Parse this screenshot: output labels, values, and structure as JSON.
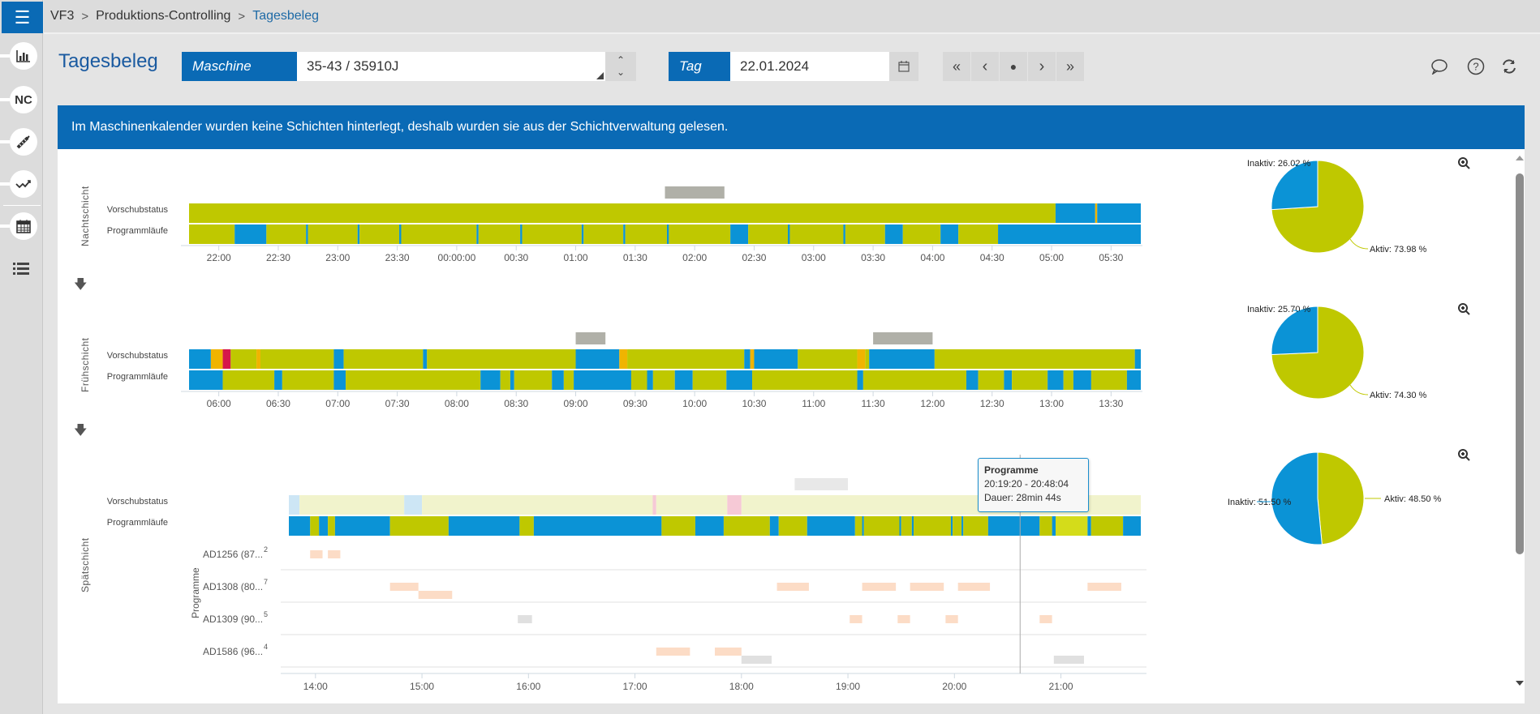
{
  "app": {
    "menu_icon": "hamburger-icon"
  },
  "breadcrumb": [
    {
      "label": "VF3"
    },
    {
      "label": "Produktions-Controlling"
    },
    {
      "label": "Tagesbeleg"
    }
  ],
  "sidebar": {
    "items": [
      {
        "name": "bar-chart-icon",
        "label": ""
      },
      {
        "name": "nc-icon",
        "label": "NC"
      },
      {
        "name": "tool-icon",
        "label": ""
      },
      {
        "name": "trend-icon",
        "label": ""
      },
      {
        "name": "calendar-icon",
        "label": ""
      },
      {
        "name": "list-icon",
        "label": ""
      }
    ]
  },
  "page": {
    "title": "Tagesbeleg"
  },
  "filters": {
    "machine_label": "Maschine",
    "machine_value": "35-43 / 35910J",
    "day_label": "Tag",
    "day_value": "22.01.2024"
  },
  "nav": {
    "first": "«",
    "prev": "‹",
    "today": "●",
    "next": "›",
    "last": "»"
  },
  "banner": {
    "text": "Im Maschinenkalender wurden keine Schichten hinterlegt, deshalb wurden sie aus der Schichtverwaltung gelesen."
  },
  "row_labels": {
    "feed": "Vorschubstatus",
    "runs": "Programmläufe",
    "programs_axis": "Programme"
  },
  "colors": {
    "active": "#bfc800",
    "inactive": "#0b93d6",
    "warning": "#f0b400",
    "error": "#d6174b",
    "idle_bar": "#b0b0a8",
    "primary": "#0a6ab5"
  },
  "tooltip": {
    "title": "Programme",
    "range": "20:19:20 - 20:48:04",
    "duration": "Dauer: 28min 44s"
  },
  "chart_data": [
    {
      "type": "gantt",
      "title": "Nachtschicht",
      "x_start": "21:45",
      "x_end": "05:45",
      "ticks": [
        "22:00",
        "22:30",
        "23:00",
        "23:30",
        "00:00:00",
        "00:30",
        "01:00",
        "01:30",
        "02:00",
        "02:30",
        "03:00",
        "03:30",
        "04:00",
        "04:30",
        "05:00",
        "05:30"
      ],
      "idle_markers": [
        [
          "01:45",
          "02:15"
        ]
      ],
      "feed": [
        [
          "21:45",
          "05:02",
          "active"
        ],
        [
          "05:02",
          "05:22",
          "inactive"
        ],
        [
          "05:22",
          "05:23",
          "warning"
        ],
        [
          "05:23",
          "05:45",
          "inactive"
        ]
      ],
      "runs": [
        [
          "21:45",
          "22:08",
          "active"
        ],
        [
          "22:08",
          "22:24",
          "inactive"
        ],
        [
          "22:24",
          "22:44",
          "active"
        ],
        [
          "22:44",
          "22:45",
          "inactive"
        ],
        [
          "22:45",
          "23:10",
          "active"
        ],
        [
          "23:10",
          "23:11",
          "inactive"
        ],
        [
          "23:11",
          "23:31",
          "active"
        ],
        [
          "23:31",
          "23:32",
          "inactive"
        ],
        [
          "23:32",
          "00:10",
          "active"
        ],
        [
          "00:10",
          "00:11",
          "inactive"
        ],
        [
          "00:11",
          "00:32",
          "active"
        ],
        [
          "00:32",
          "00:33",
          "inactive"
        ],
        [
          "00:33",
          "01:03",
          "active"
        ],
        [
          "01:03",
          "01:04",
          "inactive"
        ],
        [
          "01:04",
          "01:24",
          "active"
        ],
        [
          "01:24",
          "01:25",
          "inactive"
        ],
        [
          "01:25",
          "01:46",
          "active"
        ],
        [
          "01:46",
          "01:47",
          "inactive"
        ],
        [
          "01:47",
          "02:18",
          "active"
        ],
        [
          "02:18",
          "02:27",
          "inactive"
        ],
        [
          "02:27",
          "02:47",
          "active"
        ],
        [
          "02:47",
          "02:48",
          "inactive"
        ],
        [
          "02:48",
          "03:15",
          "active"
        ],
        [
          "03:15",
          "03:16",
          "inactive"
        ],
        [
          "03:16",
          "03:36",
          "active"
        ],
        [
          "03:36",
          "03:45",
          "inactive"
        ],
        [
          "03:45",
          "04:04",
          "active"
        ],
        [
          "04:04",
          "04:13",
          "inactive"
        ],
        [
          "04:13",
          "04:33",
          "active"
        ],
        [
          "04:33",
          "05:45",
          "inactive"
        ]
      ],
      "pie": {
        "Aktiv": 73.98,
        "Inaktiv": 26.02
      }
    },
    {
      "type": "gantt",
      "title": "Frühschicht",
      "x_start": "05:45",
      "x_end": "13:45",
      "ticks": [
        "06:00",
        "06:30",
        "07:00",
        "07:30",
        "08:00",
        "08:30",
        "09:00",
        "09:30",
        "10:00",
        "10:30",
        "11:00",
        "11:30",
        "12:00",
        "12:30",
        "13:00",
        "13:30"
      ],
      "idle_markers": [
        [
          "09:00",
          "09:15"
        ],
        [
          "11:30",
          "12:00"
        ]
      ],
      "feed": [
        [
          "05:45",
          "05:56",
          "inactive"
        ],
        [
          "05:56",
          "06:02",
          "warning"
        ],
        [
          "06:02",
          "06:06",
          "error"
        ],
        [
          "06:06",
          "06:19",
          "active"
        ],
        [
          "06:19",
          "06:21",
          "warning"
        ],
        [
          "06:21",
          "06:58",
          "active"
        ],
        [
          "06:58",
          "07:03",
          "inactive"
        ],
        [
          "07:03",
          "07:43",
          "active"
        ],
        [
          "07:43",
          "07:45",
          "inactive"
        ],
        [
          "07:45",
          "09:00",
          "active"
        ],
        [
          "09:00",
          "09:22",
          "inactive"
        ],
        [
          "09:22",
          "09:26",
          "warning"
        ],
        [
          "09:26",
          "10:25",
          "active"
        ],
        [
          "10:25",
          "10:28",
          "inactive"
        ],
        [
          "10:28",
          "10:30",
          "warning"
        ],
        [
          "10:30",
          "10:52",
          "inactive"
        ],
        [
          "10:52",
          "11:22",
          "active"
        ],
        [
          "11:22",
          "11:26",
          "warning"
        ],
        [
          "11:26",
          "11:28",
          "active"
        ],
        [
          "11:28",
          "12:01",
          "inactive"
        ],
        [
          "12:01",
          "13:42",
          "active"
        ],
        [
          "13:42",
          "13:45",
          "inactive"
        ]
      ],
      "runs": [
        [
          "05:45",
          "06:02",
          "inactive"
        ],
        [
          "06:02",
          "06:28",
          "active"
        ],
        [
          "06:28",
          "06:32",
          "inactive"
        ],
        [
          "06:32",
          "06:58",
          "active"
        ],
        [
          "06:58",
          "07:04",
          "inactive"
        ],
        [
          "07:04",
          "08:12",
          "active"
        ],
        [
          "08:12",
          "08:22",
          "inactive"
        ],
        [
          "08:22",
          "08:27",
          "active"
        ],
        [
          "08:27",
          "08:29",
          "inactive"
        ],
        [
          "08:29",
          "08:48",
          "active"
        ],
        [
          "08:48",
          "08:54",
          "inactive"
        ],
        [
          "08:54",
          "08:59",
          "active"
        ],
        [
          "08:59",
          "09:28",
          "inactive"
        ],
        [
          "09:28",
          "09:36",
          "active"
        ],
        [
          "09:36",
          "09:39",
          "inactive"
        ],
        [
          "09:39",
          "09:50",
          "active"
        ],
        [
          "09:50",
          "09:59",
          "inactive"
        ],
        [
          "09:59",
          "10:16",
          "active"
        ],
        [
          "10:16",
          "10:29",
          "inactive"
        ],
        [
          "10:29",
          "11:22",
          "active"
        ],
        [
          "11:22",
          "11:25",
          "inactive"
        ],
        [
          "11:25",
          "12:17",
          "active"
        ],
        [
          "12:17",
          "12:23",
          "inactive"
        ],
        [
          "12:23",
          "12:36",
          "active"
        ],
        [
          "12:36",
          "12:40",
          "inactive"
        ],
        [
          "12:40",
          "12:58",
          "active"
        ],
        [
          "12:58",
          "13:06",
          "inactive"
        ],
        [
          "13:06",
          "13:11",
          "active"
        ],
        [
          "13:11",
          "13:20",
          "inactive"
        ],
        [
          "13:20",
          "13:38",
          "active"
        ],
        [
          "13:38",
          "13:45",
          "inactive"
        ]
      ],
      "pie": {
        "Aktiv": 74.3,
        "Inaktiv": 25.7
      }
    },
    {
      "type": "gantt",
      "title": "Spätschicht",
      "x_start": "13:45",
      "x_end": "21:45",
      "ticks": [
        "14:00",
        "15:00",
        "16:00",
        "17:00",
        "18:00",
        "19:00",
        "20:00",
        "21:00"
      ],
      "idle_markers": [
        [
          "18:30",
          "19:00"
        ]
      ],
      "feed_faded": true,
      "feed": [
        [
          "13:45",
          "13:51",
          "inactive"
        ],
        [
          "13:51",
          "14:50",
          "active"
        ],
        [
          "14:50",
          "15:00",
          "inactive"
        ],
        [
          "15:00",
          "17:10",
          "active"
        ],
        [
          "17:10",
          "17:12",
          "error"
        ],
        [
          "17:12",
          "17:52",
          "active"
        ],
        [
          "17:52",
          "18:00",
          "error"
        ],
        [
          "18:00",
          "21:45",
          "active"
        ]
      ],
      "runs": [
        [
          "13:45",
          "13:57",
          "inactive"
        ],
        [
          "13:57",
          "14:02",
          "active"
        ],
        [
          "14:02",
          "14:07",
          "inactive"
        ],
        [
          "14:07",
          "14:11",
          "active"
        ],
        [
          "14:11",
          "14:42",
          "inactive"
        ],
        [
          "14:42",
          "15:15",
          "active"
        ],
        [
          "15:15",
          "15:55",
          "inactive"
        ],
        [
          "15:55",
          "16:03",
          "active"
        ],
        [
          "16:03",
          "17:15",
          "inactive"
        ],
        [
          "17:15",
          "17:34",
          "active"
        ],
        [
          "17:34",
          "17:50",
          "inactive"
        ],
        [
          "17:50",
          "18:16",
          "active"
        ],
        [
          "18:16",
          "18:21",
          "inactive"
        ],
        [
          "18:21",
          "18:37",
          "active"
        ],
        [
          "18:37",
          "19:04",
          "inactive"
        ],
        [
          "19:04",
          "19:08",
          "active"
        ],
        [
          "19:08",
          "19:09",
          "inactive"
        ],
        [
          "19:09",
          "19:29",
          "active"
        ],
        [
          "19:29",
          "19:30",
          "inactive"
        ],
        [
          "19:30",
          "19:36",
          "active"
        ],
        [
          "19:36",
          "19:37",
          "inactive"
        ],
        [
          "19:37",
          "19:58",
          "active"
        ],
        [
          "19:58",
          "19:59",
          "inactive"
        ],
        [
          "19:59",
          "20:04",
          "active"
        ],
        [
          "20:04",
          "20:05",
          "inactive"
        ],
        [
          "20:05",
          "20:19",
          "active"
        ],
        [
          "20:19",
          "20:48",
          "inactive"
        ],
        [
          "20:48",
          "20:55",
          "active"
        ],
        [
          "20:55",
          "20:57",
          "inactive"
        ],
        [
          "20:57",
          "21:15",
          "highlight"
        ],
        [
          "21:15",
          "21:17",
          "inactive"
        ],
        [
          "21:17",
          "21:35",
          "active"
        ],
        [
          "21:35",
          "21:45",
          "inactive"
        ]
      ],
      "programs": [
        {
          "label": "AD1256 (87...",
          "count": "2",
          "bars": [
            [
              "13:57",
              "14:04",
              "run"
            ],
            [
              "14:07",
              "14:14",
              "run"
            ]
          ]
        },
        {
          "label": "AD1308 (80...",
          "count": "7",
          "bars": [
            [
              "14:42",
              "14:58",
              "run"
            ],
            [
              "14:58",
              "15:17",
              "run2"
            ],
            [
              "18:20",
              "18:38",
              "run"
            ],
            [
              "19:08",
              "19:27",
              "run"
            ],
            [
              "19:35",
              "19:54",
              "run"
            ],
            [
              "20:02",
              "20:20",
              "run"
            ],
            [
              "21:15",
              "21:34",
              "run"
            ]
          ]
        },
        {
          "label": "AD1309 (90...",
          "count": "5",
          "bars": [
            [
              "15:54",
              "16:02",
              "idle"
            ],
            [
              "19:01",
              "19:08",
              "run"
            ],
            [
              "19:28",
              "19:35",
              "run"
            ],
            [
              "19:55",
              "20:02",
              "run"
            ],
            [
              "20:48",
              "20:55",
              "run"
            ]
          ]
        },
        {
          "label": "AD1586 (96...",
          "count": "4",
          "bars": [
            [
              "17:12",
              "17:31",
              "run"
            ],
            [
              "17:45",
              "18:00",
              "run"
            ],
            [
              "18:00",
              "18:17",
              "idle2"
            ],
            [
              "20:56",
              "21:13",
              "idle2"
            ]
          ]
        }
      ],
      "cursor_time": "20:37",
      "pie": {
        "Aktiv": 48.5,
        "Inaktiv": 51.5
      }
    }
  ]
}
